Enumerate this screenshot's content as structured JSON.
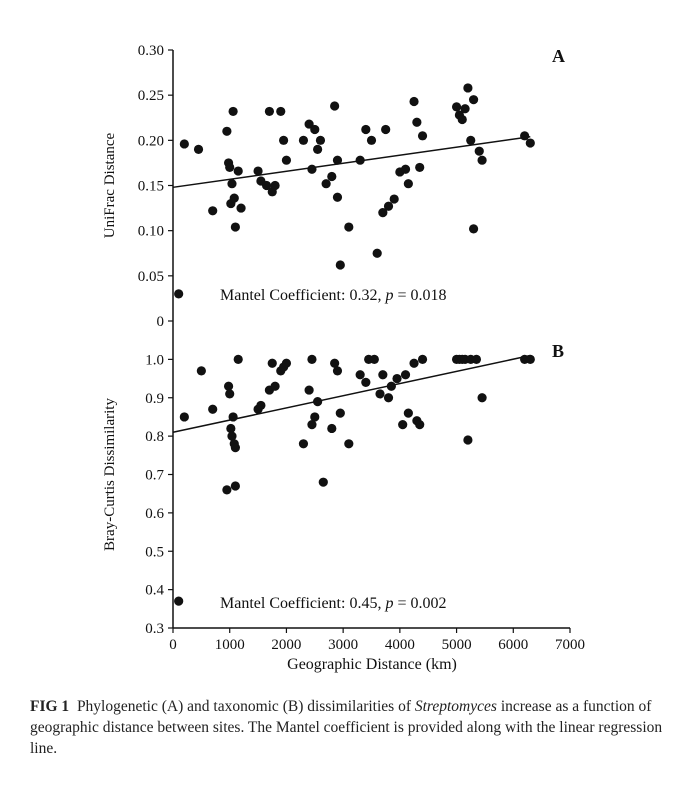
{
  "chart_data": [
    {
      "type": "scatter",
      "panel_letter": "A",
      "xlabel": "",
      "ylabel": "UniFrac Distance",
      "xlim": [
        0,
        7000
      ],
      "ylim": [
        0,
        0.3
      ],
      "y_ticks": [
        "0",
        "0.05",
        "0.10",
        "0.15",
        "0.20",
        "0.25",
        "0.30"
      ],
      "annotation_prefix": "Mantel Coefficient: 0.32, ",
      "annotation_p": "p",
      "annotation_suffix": " = 0.018",
      "regression": {
        "x": [
          0,
          6300
        ],
        "y": [
          0.148,
          0.204
        ]
      },
      "points": [
        [
          100,
          0.03
        ],
        [
          200,
          0.196
        ],
        [
          450,
          0.19
        ],
        [
          700,
          0.122
        ],
        [
          950,
          0.21
        ],
        [
          980,
          0.175
        ],
        [
          1000,
          0.17
        ],
        [
          1020,
          0.13
        ],
        [
          1040,
          0.152
        ],
        [
          1060,
          0.232
        ],
        [
          1080,
          0.136
        ],
        [
          1100,
          0.104
        ],
        [
          1150,
          0.166
        ],
        [
          1200,
          0.125
        ],
        [
          1500,
          0.166
        ],
        [
          1550,
          0.155
        ],
        [
          1650,
          0.15
        ],
        [
          1700,
          0.232
        ],
        [
          1750,
          0.143
        ],
        [
          1800,
          0.15
        ],
        [
          1900,
          0.232
        ],
        [
          1950,
          0.2
        ],
        [
          2000,
          0.178
        ],
        [
          2300,
          0.2
        ],
        [
          2400,
          0.218
        ],
        [
          2450,
          0.168
        ],
        [
          2500,
          0.212
        ],
        [
          2550,
          0.19
        ],
        [
          2600,
          0.2
        ],
        [
          2700,
          0.152
        ],
        [
          2800,
          0.16
        ],
        [
          2850,
          0.238
        ],
        [
          2900,
          0.178
        ],
        [
          2900,
          0.137
        ],
        [
          2950,
          0.062
        ],
        [
          3100,
          0.104
        ],
        [
          3300,
          0.178
        ],
        [
          3400,
          0.212
        ],
        [
          3500,
          0.2
        ],
        [
          3600,
          0.075
        ],
        [
          3700,
          0.12
        ],
        [
          3750,
          0.212
        ],
        [
          3800,
          0.127
        ],
        [
          3900,
          0.135
        ],
        [
          4000,
          0.165
        ],
        [
          4100,
          0.168
        ],
        [
          4150,
          0.152
        ],
        [
          4250,
          0.243
        ],
        [
          4300,
          0.22
        ],
        [
          4350,
          0.17
        ],
        [
          4400,
          0.205
        ],
        [
          5000,
          0.237
        ],
        [
          5050,
          0.228
        ],
        [
          5100,
          0.223
        ],
        [
          5150,
          0.235
        ],
        [
          5200,
          0.258
        ],
        [
          5250,
          0.2
        ],
        [
          5300,
          0.245
        ],
        [
          5300,
          0.102
        ],
        [
          5400,
          0.188
        ],
        [
          5450,
          0.178
        ],
        [
          6200,
          0.205
        ],
        [
          6300,
          0.197
        ]
      ]
    },
    {
      "type": "scatter",
      "panel_letter": "B",
      "xlabel": "Geographic Distance (km)",
      "ylabel": "Bray-Curtis Dissimilarity",
      "xlim": [
        0,
        7000
      ],
      "ylim": [
        0.3,
        1.1
      ],
      "x_ticks": [
        "0",
        "1000",
        "2000",
        "3000",
        "4000",
        "5000",
        "6000",
        "7000"
      ],
      "y_ticks": [
        "0.3",
        "0.4",
        "0.5",
        "0.6",
        "0.7",
        "0.8",
        "0.9",
        "1.0"
      ],
      "annotation_prefix": "Mantel Coefficient: 0.45, ",
      "annotation_p": "p",
      "annotation_suffix": " = 0.002",
      "regression": {
        "x": [
          0,
          6300
        ],
        "y": [
          0.81,
          1.01
        ]
      },
      "points": [
        [
          100,
          0.37
        ],
        [
          200,
          0.85
        ],
        [
          500,
          0.97
        ],
        [
          700,
          0.87
        ],
        [
          950,
          0.66
        ],
        [
          980,
          0.93
        ],
        [
          1000,
          0.91
        ],
        [
          1020,
          0.82
        ],
        [
          1040,
          0.8
        ],
        [
          1060,
          0.85
        ],
        [
          1080,
          0.78
        ],
        [
          1100,
          0.77
        ],
        [
          1100,
          0.67
        ],
        [
          1150,
          1.0
        ],
        [
          1500,
          0.87
        ],
        [
          1550,
          0.88
        ],
        [
          1700,
          0.92
        ],
        [
          1750,
          0.99
        ],
        [
          1800,
          0.93
        ],
        [
          1900,
          0.97
        ],
        [
          1950,
          0.98
        ],
        [
          2000,
          0.99
        ],
        [
          2300,
          0.78
        ],
        [
          2400,
          0.92
        ],
        [
          2450,
          0.83
        ],
        [
          2450,
          1.0
        ],
        [
          2500,
          0.85
        ],
        [
          2550,
          0.89
        ],
        [
          2650,
          0.68
        ],
        [
          2800,
          0.82
        ],
        [
          2850,
          0.99
        ],
        [
          2900,
          0.97
        ],
        [
          2950,
          0.86
        ],
        [
          3100,
          0.78
        ],
        [
          3300,
          0.96
        ],
        [
          3400,
          0.94
        ],
        [
          3450,
          1.0
        ],
        [
          3550,
          1.0
        ],
        [
          3650,
          0.91
        ],
        [
          3700,
          0.96
        ],
        [
          3800,
          0.9
        ],
        [
          3850,
          0.93
        ],
        [
          3950,
          0.95
        ],
        [
          4050,
          0.83
        ],
        [
          4100,
          0.96
        ],
        [
          4150,
          0.86
        ],
        [
          4250,
          0.99
        ],
        [
          4300,
          0.84
        ],
        [
          4350,
          0.83
        ],
        [
          4400,
          1.0
        ],
        [
          5000,
          1.0
        ],
        [
          5050,
          1.0
        ],
        [
          5100,
          1.0
        ],
        [
          5150,
          1.0
        ],
        [
          5200,
          0.79
        ],
        [
          5250,
          1.0
        ],
        [
          5350,
          1.0
        ],
        [
          5450,
          0.9
        ],
        [
          6200,
          1.0
        ],
        [
          6300,
          1.0
        ]
      ]
    }
  ],
  "caption": {
    "label": "FIG 1",
    "text_before_italic": "Phylogenetic (A) and taxonomic (B) dissimilarities of ",
    "italic": "Streptomyces",
    "text_after_italic": " increase as a function of geographic distance between sites. The Mantel coefficient is provided along with the linear regression line."
  }
}
